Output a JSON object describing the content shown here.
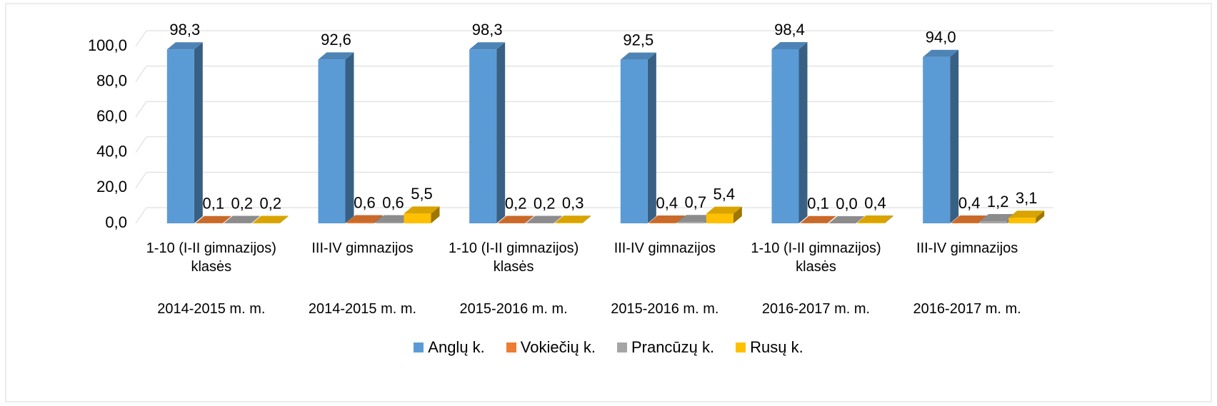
{
  "chart_data": {
    "type": "bar3d",
    "categories": [
      "1-10 (I-II gimnazijos) klasės",
      "III-IV gimnazijos",
      "1-10 (I-II gimnazijos) klasės",
      "III-IV gimnazijos",
      "1-10 (I-II gimnazijos) klasės",
      "III-IV gimnazijos"
    ],
    "groups": [
      "2014-2015 m. m.",
      "2014-2015 m. m.",
      "2015-2016 m. m.",
      "2015-2016 m. m.",
      "2016-2017 m. m.",
      "2016-2017 m. m."
    ],
    "series": [
      {
        "name": "Anglų k.",
        "color": "#5b9bd5",
        "values": [
          98.3,
          92.6,
          98.3,
          92.5,
          98.4,
          94.0
        ],
        "value_labels": [
          "98,3",
          "92,6",
          "98,3",
          "92,5",
          "98,4",
          "94,0"
        ]
      },
      {
        "name": "Vokiečių k.",
        "color": "#ed7d31",
        "values": [
          0.1,
          0.6,
          0.2,
          0.4,
          0.1,
          0.4
        ],
        "value_labels": [
          "0,1",
          "0,6",
          "0,2",
          "0,4",
          "0,1",
          "0,4"
        ]
      },
      {
        "name": "Prancūzų k.",
        "color": "#a5a5a5",
        "values": [
          0.2,
          0.6,
          0.2,
          0.7,
          0.0,
          1.2
        ],
        "value_labels": [
          "0,2",
          "0,6",
          "0,2",
          "0,7",
          "0,0",
          "1,2"
        ]
      },
      {
        "name": "Rusų k.",
        "color": "#ffc000",
        "values": [
          0.2,
          5.5,
          0.3,
          5.4,
          0.4,
          3.1
        ],
        "value_labels": [
          "0,2",
          "5,5",
          "0,3",
          "5,4",
          "0,4",
          "3,1"
        ]
      }
    ],
    "ylim": [
      0,
      100
    ],
    "yticks": [
      {
        "value": 0,
        "label": "0,0"
      },
      {
        "value": 20,
        "label": "20,0"
      },
      {
        "value": 40,
        "label": "40,0"
      },
      {
        "value": 60,
        "label": "60,0"
      },
      {
        "value": 80,
        "label": "80,0"
      },
      {
        "value": 100,
        "label": "100,0"
      }
    ],
    "grid": true,
    "legend": "bottom"
  }
}
